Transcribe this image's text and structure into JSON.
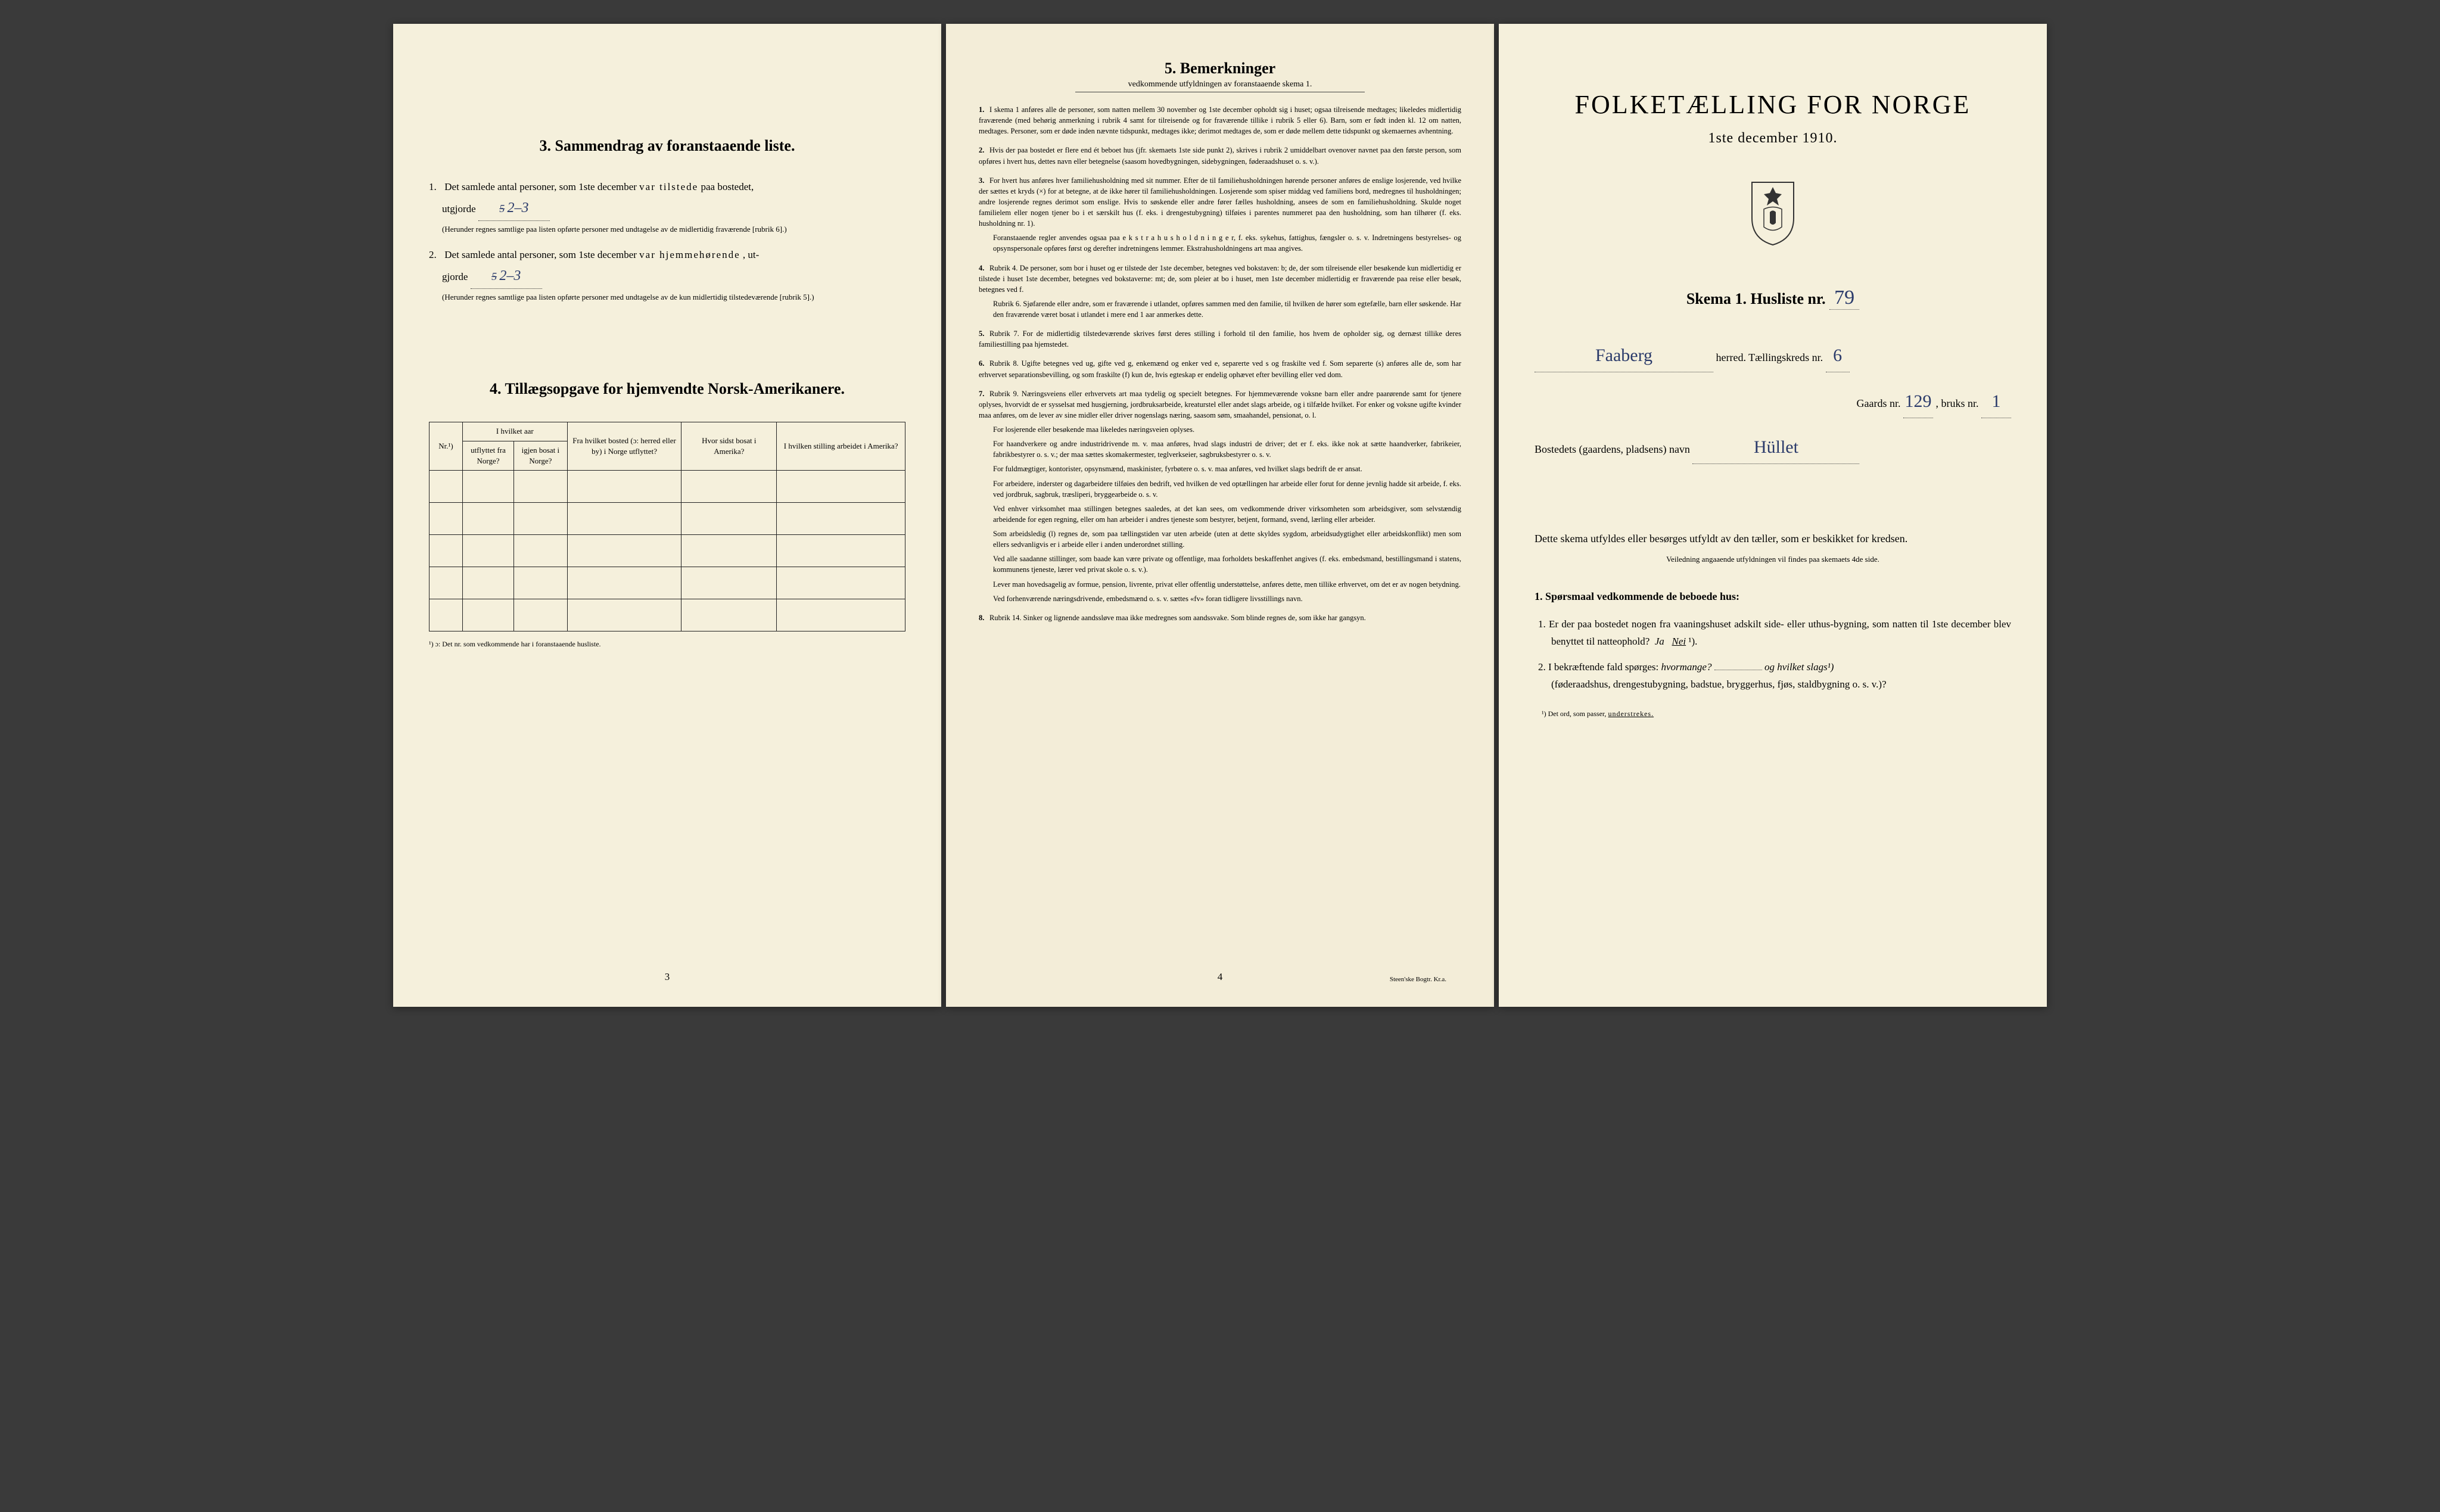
{
  "page1": {
    "section3": {
      "heading": "3.  Sammendrag av foranstaaende liste.",
      "item1_pre": "Det samlede antal personer, som 1ste december",
      "item1_emph": "var tilstede",
      "item1_post": "paa bostedet,",
      "item1_utgjorde": "utgjorde",
      "item1_val_struck": "5",
      "item1_val": "2–3",
      "item1_fine": "(Herunder regnes samtlige paa listen opførte personer med undtagelse av de midlertidig fraværende [rubrik 6].)",
      "item2_pre": "Det samlede antal personer, som 1ste december",
      "item2_emph": "var hjemmehørende",
      "item2_post": ", ut-",
      "item2_gjorde": "gjorde",
      "item2_val_struck": "5",
      "item2_val": "2–3",
      "item2_fine": "(Herunder regnes samtlige paa listen opførte personer med undtagelse av de kun midlertidig tilstedeværende [rubrik 5].)"
    },
    "section4": {
      "heading": "4.  Tillægsopgave for hjemvendte Norsk-Amerikanere.",
      "col_nr": "Nr.¹)",
      "col_aar": "I hvilket aar",
      "col_utflyttet": "utflyttet fra Norge?",
      "col_igjen": "igjen bosat i Norge?",
      "col_bosted": "Fra hvilket bosted (ɔ: herred eller by) i Norge utflyttet?",
      "col_amerika": "Hvor sidst bosat i Amerika?",
      "col_stilling": "I hvilken stilling arbeidet i Amerika?",
      "footnote": "¹) ɔ: Det nr. som vedkommende har i foranstaaende husliste.",
      "rows": 5
    },
    "page_num": "3"
  },
  "page2": {
    "heading": "5.  Bemerkninger",
    "subheading": "vedkommende utfyldningen av foranstaaende skema 1.",
    "items": [
      {
        "n": "1.",
        "text": "I skema 1 anføres alle de personer, som natten mellem 30 november og 1ste december opholdt sig i huset; ogsaa tilreisende medtages; likeledes midlertidig fraværende (med behørig anmerkning i rubrik 4 samt for tilreisende og for fraværende tillike i rubrik 5 eller 6). Barn, som er født inden kl. 12 om natten, medtages. Personer, som er døde inden nævnte tidspunkt, medtages ikke; derimot medtages de, som er døde mellem dette tidspunkt og skemaernes avhentning."
      },
      {
        "n": "2.",
        "text": "Hvis der paa bostedet er flere end ét beboet hus (jfr. skemaets 1ste side punkt 2), skrives i rubrik 2 umiddelbart ovenover navnet paa den første person, som opføres i hvert hus, dettes navn eller betegnelse (saasom hovedbygningen, sidebygningen, føderaadshuset o. s. v.)."
      },
      {
        "n": "3.",
        "text": "For hvert hus anføres hver familiehusholdning med sit nummer. Efter de til familiehusholdningen hørende personer anføres de enslige losjerende, ved hvilke der sættes et kryds (×) for at betegne, at de ikke hører til familiehusholdningen. Losjerende som spiser middag ved familiens bord, medregnes til husholdningen; andre losjerende regnes derimot som enslige. Hvis to søskende eller andre fører fælles husholdning, ansees de som en familiehusholdning. Skulde noget familielem eller nogen tjener bo i et særskilt hus (f. eks. i drengestubygning) tilføies i parentes nummeret paa den husholdning, som han tilhører (f. eks. husholdning nr. 1).",
        "sub": "Foranstaaende regler anvendes ogsaa paa  e k s t r a h u s h o l d n i n g e r,  f. eks. sykehus, fattighus, fængsler o. s. v. Indretningens bestyrelses- og opsynspersonale opføres først og derefter indretningens lemmer. Ekstrahusholdningens art maa angives."
      },
      {
        "n": "4.",
        "text": "Rubrik 4.  De personer, som bor i huset og er tilstede der 1ste december, betegnes ved bokstaven: b; de, der som tilreisende eller besøkende kun midlertidig er tilstede i huset 1ste december, betegnes ved bokstaverne: mt; de, som pleier at bo i huset, men 1ste december midlertidig er fraværende paa reise eller besøk, betegnes ved f.",
        "sub": "Rubrik 6.  Sjøfarende eller andre, som er fraværende i utlandet, opføres sammen med den familie, til hvilken de hører som egtefælle, barn eller søskende.  Har den fraværende været bosat i utlandet i mere end 1 aar anmerkes dette."
      },
      {
        "n": "5.",
        "text": "Rubrik 7.  For de midlertidig tilstedeværende skrives først deres stilling i forhold til den familie, hos hvem de opholder sig, og dernæst tillike deres familiestilling paa hjemstedet."
      },
      {
        "n": "6.",
        "text": "Rubrik 8.  Ugifte betegnes ved ug, gifte ved g, enkemænd og enker ved e, separerte ved s og fraskilte ved f. Som separerte (s) anføres alle de, som har erhvervet separationsbevilling, og som fraskilte (f) kun de, hvis egteskap er endelig ophævet efter bevilling eller ved dom."
      },
      {
        "n": "7.",
        "text": "Rubrik 9.  Næringsveiens eller erhvervets art maa tydelig og specielt betegnes. For hjemmeværende voksne barn eller andre paarørende samt for tjenere oplyses, hvorvidt de er sysselsat med husgjerning, jordbruksarbeide, kreaturstel eller andet slags arbeide, og i tilfælde hvilket. For enker og voksne ugifte kvinder maa anføres, om de lever av sine midler eller driver nogenslags næring, saasom søm, smaahandel, pensionat, o. l.",
        "subs": [
          "For losjerende eller besøkende maa likeledes næringsveien oplyses.",
          "For haandverkere og andre industridrivende m. v. maa anføres, hvad slags industri de driver; det er f. eks. ikke nok at sætte haandverker, fabrikeier, fabrikbestyrer o. s. v.; der maa sættes skomakermester, teglverkseier, sagbruksbestyrer o. s. v.",
          "For fuldmægtiger, kontorister, opsynsmænd, maskinister, fyrbøtere o. s. v. maa anføres, ved hvilket slags bedrift de er ansat.",
          "For arbeidere, inderster og dagarbeidere tilføies den bedrift, ved hvilken de ved optællingen har arbeide eller forut for denne jevnlig hadde sit arbeide, f. eks. ved jordbruk, sagbruk, træsliperi, bryggearbeide o. s. v.",
          "Ved enhver virksomhet maa stillingen betegnes saaledes, at det kan sees, om vedkommende driver virksomheten som arbeidsgiver, som selvstændig arbeidende for egen regning, eller om han arbeider i andres tjeneste som bestyrer, betjent, formand, svend, lærling eller arbeider.",
          "Som arbeidsledig (l) regnes de, som paa tællingstiden var uten arbeide (uten at dette skyldes sygdom, arbeidsudygtighet eller arbeidskonflikt) men som ellers sedvanligvis er i arbeide eller i anden underordnet stilling.",
          "Ved alle saadanne stillinger, som baade kan være private og offentlige, maa forholdets beskaffenhet angives (f. eks. embedsmand, bestillingsmand i statens, kommunens tjeneste, lærer ved privat skole o. s. v.).",
          "Lever man hovedsagelig av formue, pension, livrente, privat eller offentlig understøttelse, anføres dette, men tillike erhvervet, om det er av nogen betydning.",
          "Ved forhenværende næringsdrivende, embedsmænd o. s. v. sættes «fv» foran tidligere livsstillings navn."
        ]
      },
      {
        "n": "8.",
        "text": "Rubrik 14.  Sinker og lignende aandssløve maa ikke medregnes som aandssvake. Som blinde regnes de, som ikke har gangsyn."
      }
    ],
    "page_num": "4",
    "printer": "Steen'ske Bogtr.  Kr.a."
  },
  "page3": {
    "title": "FOLKETÆLLING FOR NORGE",
    "date": "1ste december 1910.",
    "skema_label": "Skema 1.  Husliste nr.",
    "husliste_nr": "79",
    "herred_name": "Faaberg",
    "herred_label": "herred.  Tællingskreds nr.",
    "kreds_nr": "6",
    "gaards_label": "Gaards nr.",
    "gaards_nr": "129",
    "bruks_label": ", bruks nr.",
    "bruks_nr": "1",
    "bosted_label": "Bostedets (gaardens, pladsens) navn",
    "bosted_name": "Hüllet",
    "instruction": "Dette skema utfyldes eller besørges utfyldt av den tæller, som er beskikket for kredsen.",
    "instruction_sub": "Veiledning angaaende utfyldningen vil findes paa skemaets 4de side.",
    "q_heading": "1. Spørsmaal vedkommende de beboede hus:",
    "q1_num": "1.",
    "q1": "Er der paa bostedet nogen fra vaaningshuset adskilt side- eller uthus-bygning, som natten til 1ste december blev benyttet til natteophold?",
    "q1_ja": "Ja",
    "q1_nei": "Nei",
    "q1_sup": "¹).",
    "q2_num": "2.",
    "q2_a": "I bekræftende fald spørges:",
    "q2_hvormange": "hvormange?",
    "q2_og": "og hvilket slags¹)",
    "q2_b": "(føderaadshus, drengestubygning, badstue, bryggerhus, fjøs, staldbygning o. s. v.)?",
    "footnote": "¹) Det ord, som passer,",
    "footnote_u": "understrekes."
  }
}
